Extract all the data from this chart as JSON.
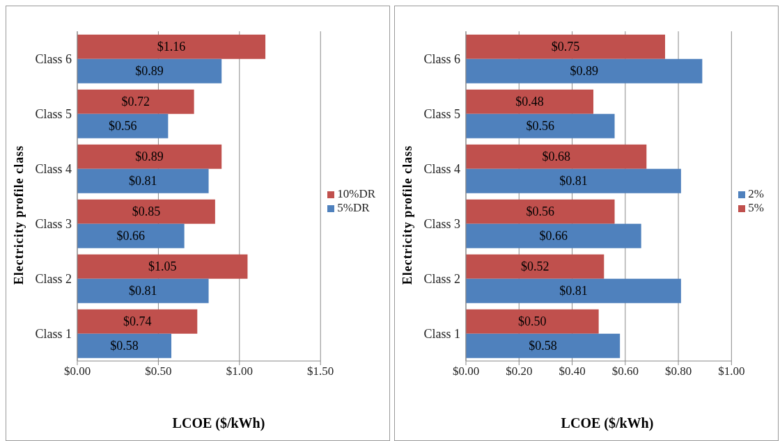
{
  "chart_data": [
    {
      "type": "bar",
      "orientation": "horizontal",
      "xlabel": "LCOE ($/kWh)",
      "ylabel": "Electricity profile class",
      "categories": [
        "Class 6",
        "Class 5",
        "Class 4",
        "Class 3",
        "Class 2",
        "Class 1"
      ],
      "series": [
        {
          "name": "10%DR",
          "color": "#c0504d",
          "values": [
            1.16,
            0.72,
            0.89,
            0.85,
            1.05,
            0.74
          ],
          "value_labels": [
            "$1.16",
            "$0.72",
            "$0.89",
            "$0.85",
            "$1.05",
            "$0.74"
          ]
        },
        {
          "name": "5%DR",
          "color": "#4f81bd",
          "values": [
            0.89,
            0.56,
            0.81,
            0.66,
            0.81,
            0.58
          ],
          "value_labels": [
            "$0.89",
            "$0.56",
            "$0.81",
            "$0.66",
            "$0.81",
            "$0.58"
          ]
        }
      ],
      "xlim": [
        0,
        1.5
      ],
      "xticks": [
        {
          "value": 0,
          "label": "$0.00"
        },
        {
          "value": 0.5,
          "label": "$0.50"
        },
        {
          "value": 1,
          "label": "$1.00"
        },
        {
          "value": 1.5,
          "label": "$1.50"
        }
      ],
      "grid": "x",
      "legend": "right"
    },
    {
      "type": "bar",
      "orientation": "horizontal",
      "xlabel": "LCOE ($/kWh)",
      "ylabel": "Electricity profile class",
      "categories": [
        "Class 6",
        "Class 5",
        "Class 4",
        "Class 3",
        "Class 2",
        "Class 1"
      ],
      "series": [
        {
          "name": "5%",
          "color": "#c0504d",
          "values": [
            0.75,
            0.48,
            0.68,
            0.56,
            0.52,
            0.5
          ],
          "value_labels": [
            "$0.75",
            "$0.48",
            "$0.68",
            "$0.56",
            "$0.52",
            "$0.50"
          ]
        },
        {
          "name": "2%",
          "color": "#4f81bd",
          "values": [
            0.89,
            0.56,
            0.81,
            0.66,
            0.81,
            0.58
          ],
          "value_labels": [
            "$0.89",
            "$0.56",
            "$0.81",
            "$0.66",
            "$0.81",
            "$0.58"
          ]
        }
      ],
      "xlim": [
        0,
        1
      ],
      "xticks": [
        {
          "value": 0,
          "label": "$0.00"
        },
        {
          "value": 0.2,
          "label": "$0.20"
        },
        {
          "value": 0.4,
          "label": "$0.40"
        },
        {
          "value": 0.6,
          "label": "$0.60"
        },
        {
          "value": 0.8,
          "label": "$0.80"
        },
        {
          "value": 1,
          "label": "$1.00"
        }
      ],
      "grid": "x",
      "legend": "right"
    }
  ]
}
